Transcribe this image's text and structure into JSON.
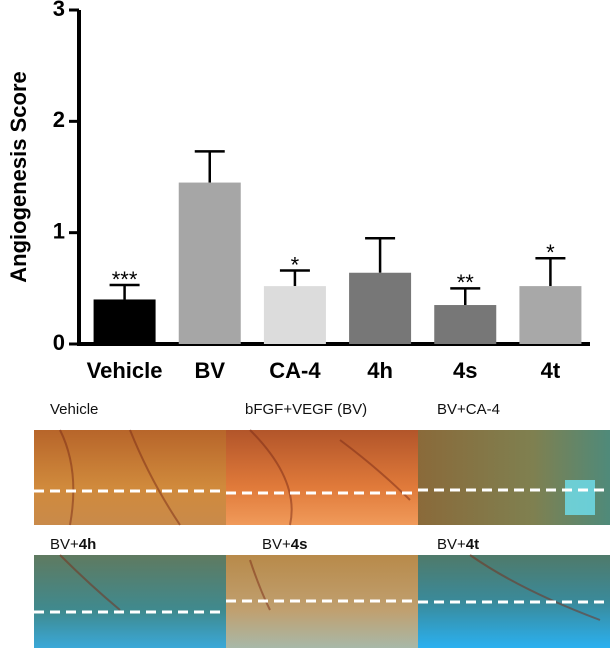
{
  "chart_data": {
    "type": "bar",
    "y_label": "Angiogenesis Score",
    "categories": [
      "Vehicle",
      "BV",
      "CA-4",
      "4h",
      "4s",
      "4t"
    ],
    "values": [
      0.4,
      1.45,
      0.52,
      0.64,
      0.35,
      0.52
    ],
    "error": [
      0.13,
      0.28,
      0.14,
      0.31,
      0.15,
      0.25
    ],
    "annotations": [
      "***",
      null,
      "*",
      null,
      "**",
      "*"
    ],
    "colors": [
      "#000000",
      "#a6a6a6",
      "#dcdcdc",
      "#777777",
      "#777777",
      "#a8a8a8"
    ],
    "ylim": [
      0,
      3
    ],
    "yticks": [
      0,
      1,
      2,
      3
    ]
  },
  "panels": [
    {
      "label": "Vehicle"
    },
    {
      "label": "bFGF+VEGF (BV)"
    },
    {
      "label": "BV+CA-4"
    },
    {
      "label": "BV+",
      "label_bold": "4h"
    },
    {
      "label": "BV+",
      "label_bold": "4s"
    },
    {
      "label": "BV+",
      "label_bold": "4t"
    }
  ]
}
